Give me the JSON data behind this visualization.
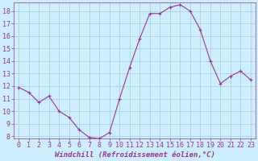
{
  "x": [
    0,
    1,
    2,
    3,
    4,
    5,
    6,
    7,
    8,
    9,
    10,
    11,
    12,
    13,
    14,
    15,
    16,
    17,
    18,
    19,
    20,
    21,
    22,
    23
  ],
  "y": [
    11.9,
    11.5,
    10.7,
    11.2,
    10.0,
    9.5,
    8.5,
    7.9,
    7.8,
    8.3,
    11.0,
    13.5,
    15.8,
    17.8,
    17.8,
    18.3,
    18.5,
    18.0,
    16.5,
    14.0,
    12.2,
    12.8,
    13.2,
    12.5
  ],
  "line_color": "#993399",
  "marker": "+",
  "marker_size": 3,
  "marker_linewidth": 0.8,
  "line_width": 0.8,
  "background_color": "#cceeff",
  "grid_color": "#aacccc",
  "xlabel": "Windchill (Refroidissement éolien,°C)",
  "xlabel_fontsize": 6.5,
  "tick_fontsize": 6,
  "ylim": [
    7.8,
    18.7
  ],
  "yticks": [
    8,
    9,
    10,
    11,
    12,
    13,
    14,
    15,
    16,
    17,
    18
  ],
  "xlim": [
    -0.5,
    23.5
  ],
  "xticks": [
    0,
    1,
    2,
    3,
    4,
    5,
    6,
    7,
    8,
    9,
    10,
    11,
    12,
    13,
    14,
    15,
    16,
    17,
    18,
    19,
    20,
    21,
    22,
    23
  ]
}
